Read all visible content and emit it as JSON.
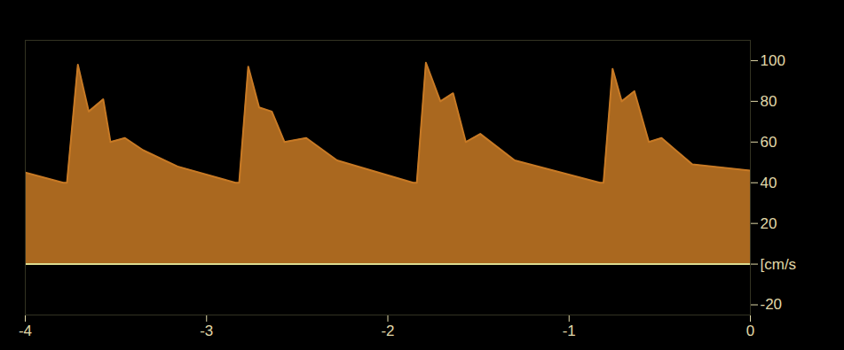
{
  "chart_data": {
    "type": "area",
    "x": [
      -4.0,
      -3.79,
      -3.77,
      -3.71,
      -3.65,
      -3.57,
      -3.53,
      -3.45,
      -3.35,
      -3.16,
      -2.84,
      -2.82,
      -2.77,
      -2.71,
      -2.64,
      -2.57,
      -2.45,
      -2.28,
      -1.86,
      -1.84,
      -1.79,
      -1.71,
      -1.64,
      -1.57,
      -1.49,
      -1.3,
      -0.83,
      -0.81,
      -0.76,
      -0.71,
      -0.64,
      -0.56,
      -0.49,
      -0.32,
      0.0
    ],
    "values": [
      45,
      40,
      40,
      98,
      75,
      81,
      60,
      62,
      56,
      48,
      40,
      40,
      97,
      77,
      75,
      60,
      62,
      51,
      40,
      40,
      99,
      80,
      84,
      60,
      64,
      51,
      40,
      40,
      96,
      80,
      85,
      60,
      62,
      49,
      46
    ],
    "color": "#c87a25",
    "xlim": [
      -4,
      0
    ],
    "xticks": [
      -4,
      -3,
      -2,
      -1,
      0
    ],
    "ylim": [
      -25,
      110
    ],
    "yticks": [
      100,
      80,
      60,
      40,
      20,
      {
        "value": 0,
        "label": "[cm/s"
      },
      -20
    ]
  }
}
